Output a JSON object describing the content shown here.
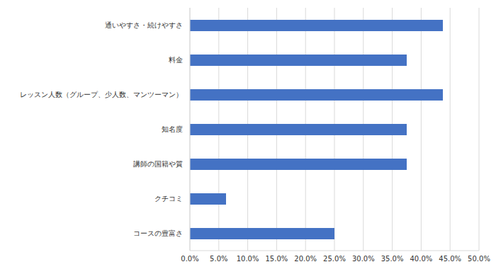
{
  "chart_data": {
    "type": "bar",
    "orientation": "horizontal",
    "categories": [
      "通いやすさ・続けやすさ",
      "料金",
      "レッスン人数（グループ、少人数、マンツーマン）",
      "知名度",
      "講師の国籍や質",
      "クチコミ",
      "コースの豊富さ"
    ],
    "values": [
      43.75,
      37.5,
      43.75,
      37.5,
      37.5,
      6.25,
      25
    ],
    "color": "#4472c4",
    "xlim": [
      0,
      50
    ],
    "xticks": [
      {
        "value": 0,
        "label": "0.0%"
      },
      {
        "value": 5,
        "label": "5.0%"
      },
      {
        "value": 10,
        "label": "10.0%"
      },
      {
        "value": 15,
        "label": "15.0%"
      },
      {
        "value": 20,
        "label": "20.0%"
      },
      {
        "value": 25,
        "label": "25.0%"
      },
      {
        "value": 30,
        "label": "30.0%"
      },
      {
        "value": 35,
        "label": "35.0%"
      },
      {
        "value": 40,
        "label": "40.0%"
      },
      {
        "value": 45,
        "label": "45.0%"
      },
      {
        "value": 50,
        "label": "50.0%"
      }
    ],
    "grid": true
  }
}
